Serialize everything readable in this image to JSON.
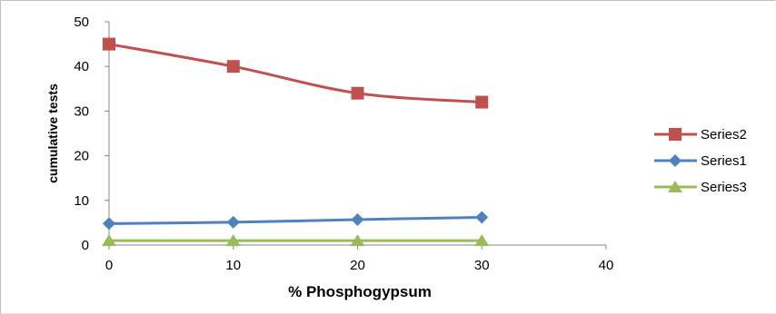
{
  "chart_data": {
    "type": "line",
    "title": "",
    "xlabel": "% Phosphogypsum",
    "ylabel": "cumulative tests",
    "xlim": [
      0,
      40
    ],
    "ylim": [
      0,
      50
    ],
    "x_ticks": [
      0,
      10,
      20,
      30,
      40
    ],
    "y_ticks": [
      0,
      10,
      20,
      30,
      40,
      50
    ],
    "grid": false,
    "legend_position": "right",
    "series": [
      {
        "name": "Series2",
        "x": [
          0,
          10,
          20,
          30
        ],
        "values": [
          45,
          40,
          34,
          32
        ],
        "color": "#c0504d",
        "marker": "square"
      },
      {
        "name": "Series1",
        "x": [
          0,
          10,
          20,
          30
        ],
        "values": [
          4.8,
          5.1,
          5.7,
          6.2
        ],
        "color": "#4f81bd",
        "marker": "diamond"
      },
      {
        "name": "Series3",
        "x": [
          0,
          10,
          20,
          30
        ],
        "values": [
          1.0,
          1.0,
          1.0,
          1.0
        ],
        "color": "#9bbb59",
        "marker": "triangle"
      }
    ]
  }
}
